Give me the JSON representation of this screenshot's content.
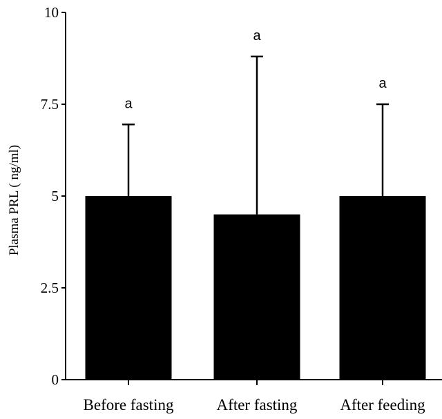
{
  "chart_data": {
    "type": "bar",
    "title": "",
    "xlabel": "",
    "ylabel": "Plasma PRL ( ng/ml)",
    "ylim": [
      0,
      10
    ],
    "yticks": [
      0,
      2.5,
      5,
      7.5,
      10
    ],
    "ytick_labels": [
      "0",
      "2.5",
      "5",
      "7.5",
      "10"
    ],
    "grid": false,
    "categories": [
      "Before fasting",
      "After fasting",
      "After feeding"
    ],
    "values": [
      5.0,
      4.5,
      5.0
    ],
    "error_upper": [
      6.95,
      8.8,
      7.5
    ],
    "annotations": [
      "a",
      "a",
      "a"
    ],
    "colors": {
      "bar": "#000000",
      "axis": "#000000"
    }
  }
}
